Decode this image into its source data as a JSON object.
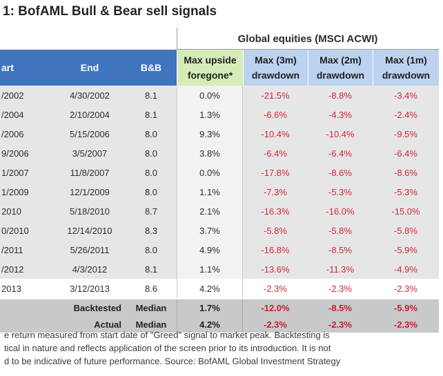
{
  "title": "1: BofAML Bull & Bear sell signals",
  "group_header": "Global equities (MSCI ACWI)",
  "columns": {
    "start": "art",
    "end": "End",
    "bb": "B&B",
    "upside_line1": "Max upside",
    "upside_line2": "foregone*",
    "m3_line1": "Max (3m)",
    "m3_line2": "drawdown",
    "m2_line1": "Max (2m)",
    "m2_line2": "drawdown",
    "m1_line1": "Max (1m)",
    "m1_line2": "drawdown"
  },
  "rows": [
    {
      "start": "/2002",
      "end": "4/30/2002",
      "bb": "8.1",
      "upside": "0.0%",
      "m3": "-21.5%",
      "m2": "-8.8%",
      "m1": "-3.4%"
    },
    {
      "start": "/2004",
      "end": "2/10/2004",
      "bb": "8.1",
      "upside": "1.3%",
      "m3": "-6.6%",
      "m2": "-4.3%",
      "m1": "-2.4%"
    },
    {
      "start": "/2006",
      "end": "5/15/2006",
      "bb": "8.0",
      "upside": "9.3%",
      "m3": "-10.4%",
      "m2": "-10.4%",
      "m1": "-9.5%"
    },
    {
      "start": "9/2006",
      "end": "3/5/2007",
      "bb": "8.0",
      "upside": "3.8%",
      "m3": "-6.4%",
      "m2": "-6.4%",
      "m1": "-6.4%"
    },
    {
      "start": "1/2007",
      "end": "11/8/2007",
      "bb": "8.0",
      "upside": "0.0%",
      "m3": "-17.8%",
      "m2": "-8.6%",
      "m1": "-8.6%"
    },
    {
      "start": "1/2009",
      "end": "12/1/2009",
      "bb": "8.0",
      "upside": "1.1%",
      "m3": "-7.3%",
      "m2": "-5.3%",
      "m1": "-5.3%"
    },
    {
      "start": "2010",
      "end": "5/18/2010",
      "bb": "8.7",
      "upside": "2.1%",
      "m3": "-16.3%",
      "m2": "-16.0%",
      "m1": "-15.0%"
    },
    {
      "start": "0/2010",
      "end": "12/14/2010",
      "bb": "8.3",
      "upside": "3.7%",
      "m3": "-5.8%",
      "m2": "-5.8%",
      "m1": "-5.8%"
    },
    {
      "start": "/2011",
      "end": "5/26/2011",
      "bb": "8.0",
      "upside": "4.9%",
      "m3": "-16.8%",
      "m2": "-8.5%",
      "m1": "-5.9%"
    },
    {
      "start": "/2012",
      "end": "4/3/2012",
      "bb": "8.1",
      "upside": "1.1%",
      "m3": "-13.6%",
      "m2": "-11.3%",
      "m1": "-4.9%"
    },
    {
      "start": "2013",
      "end": "3/12/2013",
      "bb": "8.6",
      "upside": "4.2%",
      "m3": "-2.3%",
      "m2": "-2.3%",
      "m1": "-2.3%"
    }
  ],
  "summary": [
    {
      "label": "Backtested",
      "stat": "Median",
      "upside": "1.7%",
      "m3": "-12.0%",
      "m2": "-8.5%",
      "m1": "-5.9%"
    },
    {
      "label": "Actual",
      "stat": "Median",
      "upside": "4.2%",
      "m3": "-2.3%",
      "m2": "-2.3%",
      "m1": "-2.3%"
    }
  ],
  "footnote": [
    "e return measured from start date of \"Greed\" signal to market peak. Backtesting is",
    "tical in nature and reflects application of the screen prior to its introduction. It is not",
    "d to be indicative of future performance. Source: BofAML Global Investment Strategy"
  ]
}
